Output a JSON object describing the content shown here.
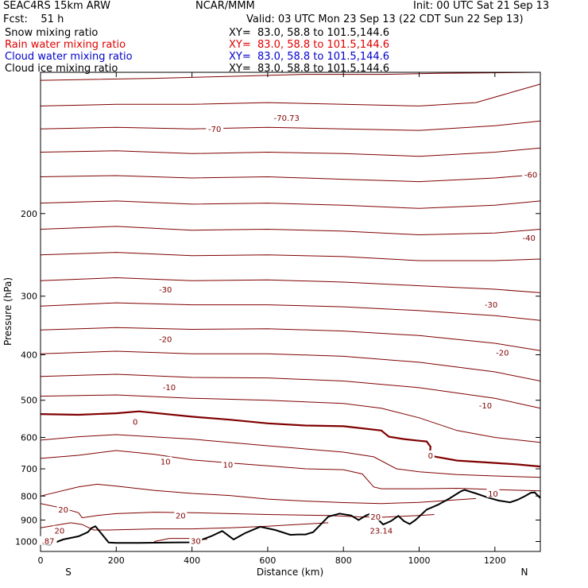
{
  "header": {
    "model": "SEAC4RS 15km ARW",
    "org": "NCAR/MMM",
    "init": "Init: 00 UTC Sat 21 Sep 13",
    "fcst": "Fcst:    51 h",
    "valid": "Valid: 03 UTC Mon 23 Sep 13 (22 CDT Sun 22 Sep 13)",
    "fields": [
      {
        "name": "Snow mixing ratio",
        "xy": "XY=  83.0, 58.8 to 101.5,144.6",
        "color": "#000000"
      },
      {
        "name": "Rain water mixing ratio",
        "xy": "XY=  83.0, 58.8 to 101.5,144.6",
        "color": "#e00000"
      },
      {
        "name": "Cloud water mixing ratio",
        "xy": "XY=  83.0, 58.8 to 101.5,144.6",
        "color": "#0000cc"
      },
      {
        "name": "Cloud ice mixing ratio",
        "xy": "XY=  83.0, 58.8 to 101.5,144.6",
        "color": "#000000"
      }
    ]
  },
  "chart_data": {
    "type": "line",
    "xlabel": "Distance (km)",
    "ylabel": "Pressure (hPa)",
    "xlim": [
      0,
      1320
    ],
    "ylim": [
      1050,
      100
    ],
    "y_scale": "log",
    "x_ticks": [
      0,
      200,
      400,
      600,
      800,
      1000,
      1200
    ],
    "y_ticks": [
      200,
      300,
      400,
      500,
      600,
      700,
      800,
      900,
      1000
    ],
    "y_tick_labels": [
      "200",
      "300",
      "400",
      "500",
      "600",
      "700",
      "800",
      "900",
      "1000"
    ],
    "endpoints": {
      "left": "S",
      "right": "N"
    },
    "contour_color": "#800000",
    "terrain_color": "#000000",
    "contour_labels": [
      {
        "text": "-70",
        "x": 460,
        "p": 132
      },
      {
        "text": "-70.73",
        "x": 650,
        "p": 125
      },
      {
        "text": "-60",
        "x": 1295,
        "p": 165
      },
      {
        "text": "-40",
        "x": 1290,
        "p": 225
      },
      {
        "text": "-30",
        "x": 330,
        "p": 290
      },
      {
        "text": "-30",
        "x": 1190,
        "p": 312
      },
      {
        "text": "-20",
        "x": 330,
        "p": 370
      },
      {
        "text": "-20",
        "x": 1220,
        "p": 395
      },
      {
        "text": "-10",
        "x": 340,
        "p": 468
      },
      {
        "text": "-10",
        "x": 1175,
        "p": 512
      },
      {
        "text": "0",
        "x": 250,
        "p": 555
      },
      {
        "text": "0",
        "x": 1030,
        "p": 655
      },
      {
        "text": "10",
        "x": 330,
        "p": 675
      },
      {
        "text": "10",
        "x": 495,
        "p": 685
      },
      {
        "text": "10",
        "x": 1195,
        "p": 790
      },
      {
        "text": "20",
        "x": 60,
        "p": 854
      },
      {
        "text": "20",
        "x": 370,
        "p": 880
      },
      {
        "text": "20",
        "x": 885,
        "p": 885
      },
      {
        "text": "20",
        "x": 50,
        "p": 947
      },
      {
        "text": "23.14",
        "x": 900,
        "p": 947
      },
      {
        "text": "30",
        "x": 410,
        "p": 997
      },
      {
        "text": ".87",
        "x": 20,
        "p": 997
      }
    ],
    "zero_isotherm": [
      [
        0,
        535
      ],
      [
        100,
        537
      ],
      [
        200,
        533
      ],
      [
        260,
        528
      ],
      [
        400,
        542
      ],
      [
        500,
        550
      ],
      [
        600,
        560
      ],
      [
        700,
        566
      ],
      [
        800,
        568
      ],
      [
        900,
        580
      ],
      [
        920,
        598
      ],
      [
        960,
        605
      ],
      [
        1000,
        610
      ],
      [
        1020,
        612
      ],
      [
        1030,
        628
      ],
      [
        1028,
        655
      ],
      [
        1045,
        660
      ],
      [
        1100,
        672
      ],
      [
        1200,
        680
      ],
      [
        1260,
        685
      ],
      [
        1320,
        692
      ]
    ],
    "isotherms": [
      [
        [
          0,
          104
        ],
        [
          300,
          103
        ],
        [
          500,
          102
        ],
        [
          700,
          101
        ],
        [
          900,
          101
        ],
        [
          1050,
          100.5
        ],
        [
          1320,
          100
        ]
      ],
      [
        [
          0,
          118
        ],
        [
          200,
          117
        ],
        [
          400,
          117
        ],
        [
          600,
          116
        ],
        [
          800,
          117
        ],
        [
          1000,
          118
        ],
        [
          1150,
          116
        ],
        [
          1250,
          110
        ],
        [
          1320,
          106
        ]
      ],
      [
        [
          0,
          132
        ],
        [
          200,
          131
        ],
        [
          400,
          132
        ],
        [
          600,
          131
        ],
        [
          800,
          132
        ],
        [
          1000,
          133
        ],
        [
          1200,
          130
        ],
        [
          1320,
          127
        ]
      ],
      [
        [
          0,
          148
        ],
        [
          200,
          147
        ],
        [
          400,
          149
        ],
        [
          600,
          148
        ],
        [
          800,
          149
        ],
        [
          1000,
          151
        ],
        [
          1200,
          148
        ],
        [
          1320,
          145
        ]
      ],
      [
        [
          0,
          167
        ],
        [
          200,
          166
        ],
        [
          400,
          168
        ],
        [
          600,
          167
        ],
        [
          800,
          169
        ],
        [
          1000,
          171
        ],
        [
          1200,
          168
        ],
        [
          1320,
          165
        ]
      ],
      [
        [
          0,
          190
        ],
        [
          200,
          188
        ],
        [
          400,
          191
        ],
        [
          600,
          190
        ],
        [
          800,
          192
        ],
        [
          1000,
          195
        ],
        [
          1200,
          192
        ],
        [
          1320,
          188
        ]
      ],
      [
        [
          0,
          216
        ],
        [
          200,
          213
        ],
        [
          400,
          217
        ],
        [
          600,
          216
        ],
        [
          800,
          218
        ],
        [
          1000,
          222
        ],
        [
          1200,
          220
        ],
        [
          1320,
          216
        ]
      ],
      [
        [
          0,
          245
        ],
        [
          200,
          242
        ],
        [
          400,
          246
        ],
        [
          600,
          245
        ],
        [
          800,
          247
        ],
        [
          1000,
          252
        ],
        [
          1200,
          252
        ],
        [
          1320,
          250
        ]
      ],
      [
        [
          0,
          278
        ],
        [
          200,
          274
        ],
        [
          400,
          278
        ],
        [
          600,
          277
        ],
        [
          800,
          280
        ],
        [
          1000,
          285
        ],
        [
          1200,
          290
        ],
        [
          1320,
          295
        ]
      ],
      [
        [
          0,
          315
        ],
        [
          200,
          310
        ],
        [
          400,
          313
        ],
        [
          600,
          313
        ],
        [
          800,
          316
        ],
        [
          1000,
          322
        ],
        [
          1200,
          330
        ],
        [
          1320,
          338
        ]
      ],
      [
        [
          0,
          354
        ],
        [
          200,
          350
        ],
        [
          400,
          353
        ],
        [
          600,
          352
        ],
        [
          800,
          356
        ],
        [
          1000,
          364
        ],
        [
          1200,
          378
        ],
        [
          1320,
          392
        ]
      ],
      [
        [
          0,
          398
        ],
        [
          200,
          393
        ],
        [
          400,
          398
        ],
        [
          600,
          398
        ],
        [
          800,
          403
        ],
        [
          1000,
          415
        ],
        [
          1200,
          435
        ],
        [
          1320,
          455
        ]
      ],
      [
        [
          0,
          445
        ],
        [
          200,
          440
        ],
        [
          400,
          447
        ],
        [
          600,
          448
        ],
        [
          800,
          455
        ],
        [
          1000,
          470
        ],
        [
          1200,
          495
        ],
        [
          1320,
          520
        ]
      ],
      [
        [
          0,
          490
        ],
        [
          200,
          487
        ],
        [
          400,
          495
        ],
        [
          600,
          500
        ],
        [
          800,
          508
        ],
        [
          900,
          520
        ],
        [
          1000,
          545
        ],
        [
          1100,
          580
        ],
        [
          1200,
          600
        ],
        [
          1320,
          615
        ]
      ],
      [
        [
          0,
          608
        ],
        [
          100,
          598
        ],
        [
          200,
          592
        ],
        [
          400,
          605
        ],
        [
          600,
          625
        ],
        [
          800,
          645
        ],
        [
          880,
          660
        ],
        [
          940,
          700
        ],
        [
          1000,
          710
        ],
        [
          1100,
          720
        ],
        [
          1200,
          725
        ],
        [
          1320,
          730
        ]
      ],
      [
        [
          0,
          665
        ],
        [
          100,
          655
        ],
        [
          200,
          640
        ],
        [
          300,
          652
        ],
        [
          400,
          670
        ],
        [
          500,
          680
        ],
        [
          600,
          690
        ],
        [
          700,
          700
        ],
        [
          800,
          703
        ],
        [
          850,
          718
        ],
        [
          880,
          765
        ],
        [
          900,
          772
        ],
        [
          1000,
          772
        ],
        [
          1100,
          770
        ],
        [
          1200,
          775
        ],
        [
          1320,
          780
        ]
      ],
      [
        [
          0,
          800
        ],
        [
          100,
          765
        ],
        [
          150,
          755
        ],
        [
          200,
          762
        ],
        [
          300,
          778
        ],
        [
          400,
          790
        ],
        [
          500,
          798
        ],
        [
          600,
          812
        ],
        [
          700,
          820
        ],
        [
          800,
          826
        ],
        [
          900,
          830
        ],
        [
          1000,
          825
        ],
        [
          1100,
          815
        ],
        [
          1150,
          810
        ]
      ],
      [
        [
          0,
          830
        ],
        [
          60,
          850
        ],
        [
          100,
          868
        ],
        [
          110,
          890
        ],
        [
          150,
          880
        ],
        [
          200,
          872
        ],
        [
          300,
          866
        ],
        [
          400,
          868
        ],
        [
          500,
          872
        ],
        [
          600,
          876
        ],
        [
          760,
          880
        ],
        [
          840,
          886
        ],
        [
          900,
          888
        ],
        [
          1000,
          880
        ],
        [
          1040,
          876
        ]
      ],
      [
        [
          0,
          935
        ],
        [
          80,
          912
        ],
        [
          110,
          920
        ],
        [
          140,
          945
        ],
        [
          180,
          945
        ],
        [
          300,
          940
        ],
        [
          400,
          940
        ],
        [
          500,
          935
        ],
        [
          600,
          928
        ],
        [
          700,
          918
        ],
        [
          760,
          912
        ]
      ],
      [
        [
          300,
          1000
        ],
        [
          340,
          985
        ],
        [
          400,
          985
        ],
        [
          440,
          990
        ]
      ]
    ],
    "terrain": [
      [
        0,
        1012
      ],
      [
        25,
        1015
      ],
      [
        60,
        990
      ],
      [
        100,
        975
      ],
      [
        125,
        955
      ],
      [
        135,
        936
      ],
      [
        145,
        928
      ],
      [
        160,
        960
      ],
      [
        180,
        1005
      ],
      [
        200,
        1007
      ],
      [
        260,
        1007
      ],
      [
        300,
        1006
      ],
      [
        340,
        1005
      ],
      [
        400,
        1004
      ],
      [
        420,
        995
      ],
      [
        450,
        975
      ],
      [
        480,
        950
      ],
      [
        510,
        990
      ],
      [
        540,
        960
      ],
      [
        580,
        930
      ],
      [
        620,
        945
      ],
      [
        660,
        968
      ],
      [
        680,
        966
      ],
      [
        700,
        966
      ],
      [
        720,
        955
      ],
      [
        740,
        920
      ],
      [
        760,
        885
      ],
      [
        790,
        872
      ],
      [
        820,
        880
      ],
      [
        840,
        900
      ],
      [
        860,
        880
      ],
      [
        875,
        870
      ],
      [
        890,
        895
      ],
      [
        905,
        920
      ],
      [
        925,
        905
      ],
      [
        945,
        882
      ],
      [
        960,
        905
      ],
      [
        975,
        918
      ],
      [
        990,
        900
      ],
      [
        1020,
        855
      ],
      [
        1050,
        835
      ],
      [
        1080,
        810
      ],
      [
        1110,
        782
      ],
      [
        1120,
        776
      ],
      [
        1150,
        790
      ],
      [
        1180,
        805
      ],
      [
        1210,
        818
      ],
      [
        1240,
        825
      ],
      [
        1260,
        815
      ],
      [
        1280,
        800
      ],
      [
        1295,
        787
      ],
      [
        1305,
        786
      ],
      [
        1320,
        808
      ]
    ]
  }
}
